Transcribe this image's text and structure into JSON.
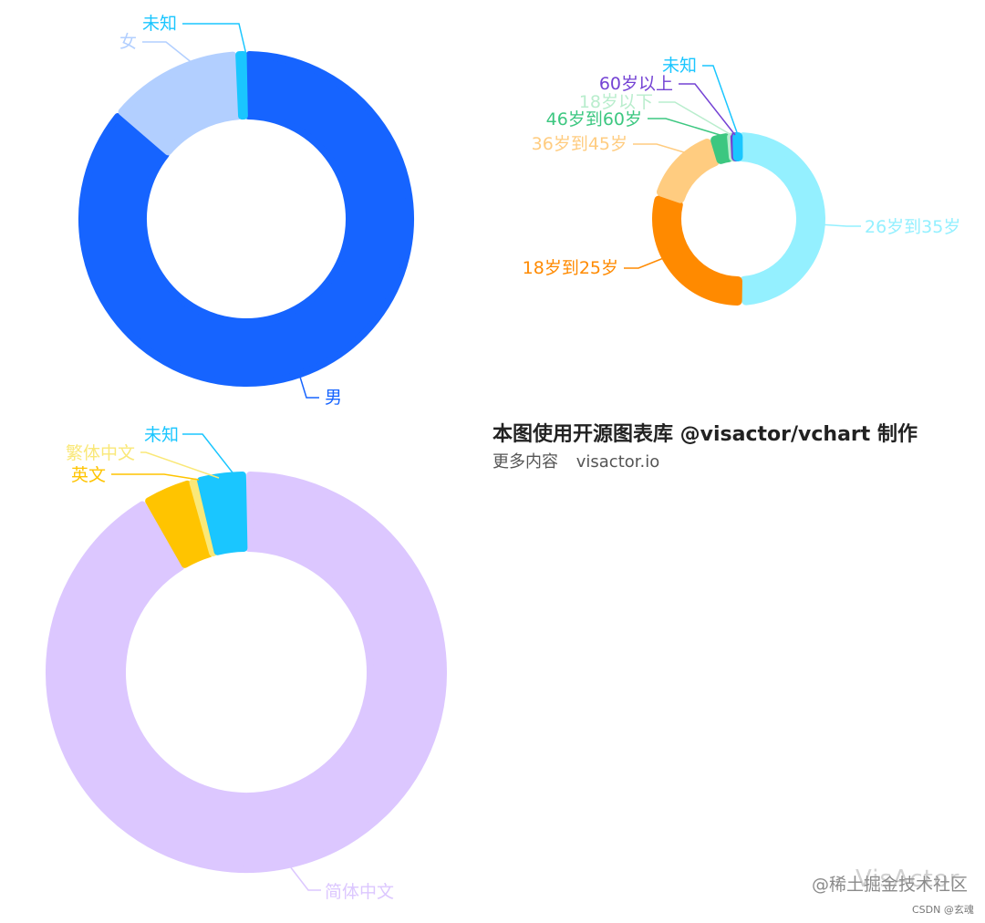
{
  "chart_data": [
    {
      "type": "pie",
      "donut": true,
      "categories": [
        "男",
        "女",
        "未知"
      ],
      "values": [
        86,
        13,
        1
      ],
      "colors": [
        "#1664FF",
        "#B2CFFF",
        "#1AC6FF"
      ]
    },
    {
      "type": "pie",
      "donut": true,
      "categories": [
        "26岁到35岁",
        "18岁到25岁",
        "36岁到45岁",
        "46岁到60岁",
        "18岁以下",
        "60岁以上",
        "未知"
      ],
      "values": [
        46,
        28,
        14,
        3.5,
        0.8,
        0.4,
        0.4
      ],
      "colors": [
        "#94F0FF",
        "#FF8A00",
        "#FFCC80",
        "#3CC780",
        "#B9EDCD",
        "#7442D4",
        "#1AC6FF"
      ]
    },
    {
      "type": "pie",
      "donut": true,
      "categories": [
        "简体中文",
        "英文",
        "繁体中文",
        "未知"
      ],
      "values": [
        91,
        4,
        0.5,
        4
      ],
      "colors": [
        "#DCC7FF",
        "#FFC400",
        "#FAE878",
        "#1AC6FF"
      ]
    }
  ],
  "credit": {
    "title": "本图使用开源图表库 @visactor/vchart 制作",
    "more_label": "更多内容",
    "link": "visactor.io"
  },
  "watermark": {
    "main": "@稀土掘金技术社区",
    "logo": "VisActor",
    "csdn": "CSDN @玄魂"
  }
}
